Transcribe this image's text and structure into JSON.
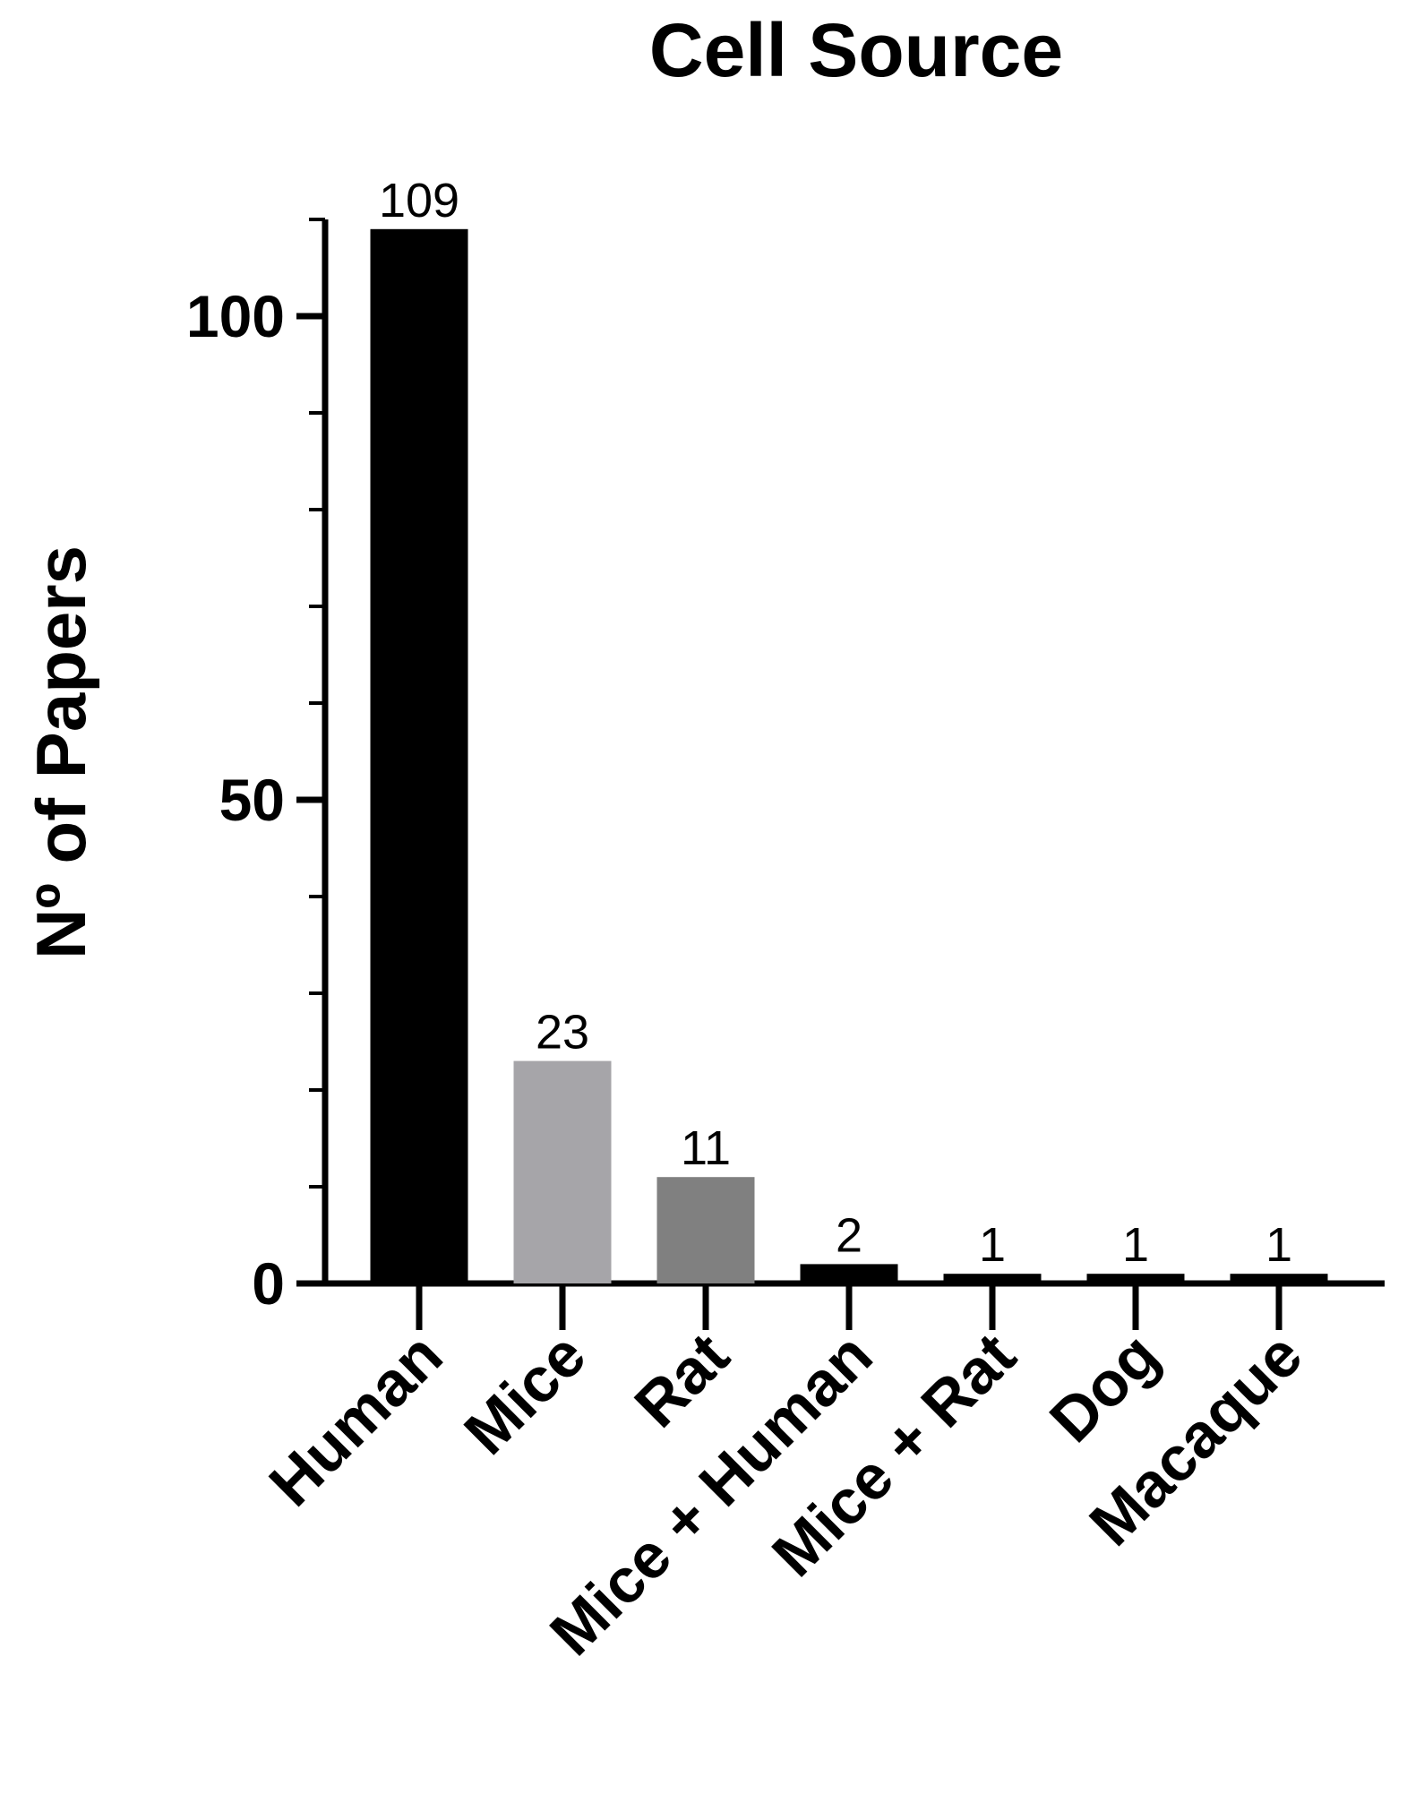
{
  "chart_data": {
    "type": "bar",
    "title": "Cell Source",
    "y_label": "Nº of Papers",
    "categories": [
      "Human",
      "Mice",
      "Rat",
      "Mice + Human",
      "Mice + Rat",
      "Dog",
      "Macaque"
    ],
    "values": [
      109,
      23,
      11,
      2,
      1,
      1,
      1
    ],
    "colors": [
      "#000000",
      "#a6a5a9",
      "#808080",
      "#000000",
      "#000000",
      "#000000",
      "#000000"
    ],
    "ylim": [
      0,
      110
    ],
    "yticks": [
      0,
      50,
      100
    ],
    "grid": false
  }
}
